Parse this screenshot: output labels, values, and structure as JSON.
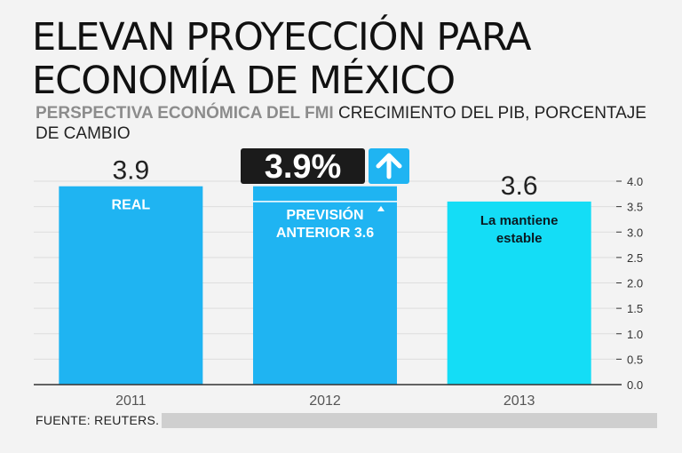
{
  "header": {
    "title_line1": "ELEVAN PROYECCIÓN PARA",
    "title_line2": "ECONOMÍA DE MÉXICO",
    "subtitle_bold": "PERSPECTIVA ECONÓMICA DEL FMI",
    "subtitle_rest": " CRECIMIENTO DEL PIB, PORCENTAJE DE CAMBIO"
  },
  "footer": {
    "source": "FUENTE: REUTERS."
  },
  "colors": {
    "bar_blue": "#1fb4f2",
    "bar_cyan": "#14ddf6",
    "badge_dark": "#1b1b1b",
    "axis": "#333333",
    "grid": "#dddddd"
  },
  "chart_data": {
    "type": "bar",
    "title": "ELEVAN PROYECCIÓN PARA ECONOMÍA DE MÉXICO",
    "subtitle": "PERSPECTIVA ECONÓMICA DEL FMI CRECIMIENTO DEL PIB, PORCENTAJE DE CAMBIO",
    "categories": [
      "2011",
      "2012",
      "2013"
    ],
    "values": [
      3.9,
      3.9,
      3.6
    ],
    "value_labels": [
      "3.9",
      "3.9%",
      "3.6"
    ],
    "bar_labels": [
      [
        "REAL"
      ],
      [
        "PREVISIÓN",
        "ANTERIOR 3.6"
      ],
      [
        "La mantiene",
        "estable"
      ]
    ],
    "previous_forecast": {
      "category": "2012",
      "value": 3.6
    },
    "ylim": [
      0,
      4.0
    ],
    "yticks": [
      "0.0",
      "0.5",
      "1.0",
      "1.5",
      "2.0",
      "2.5",
      "3.0",
      "3.5",
      "4.0"
    ],
    "yaxis_side": "right",
    "xlabel": "",
    "ylabel": "",
    "grid": true
  }
}
